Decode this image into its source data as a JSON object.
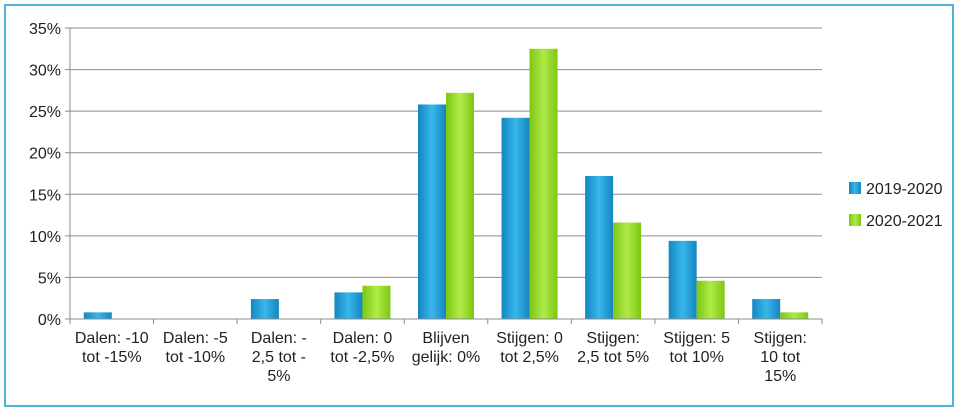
{
  "chart_data": {
    "type": "bar",
    "categories": [
      [
        "Dalen: -10",
        "tot -15%"
      ],
      [
        "Dalen: -5",
        "tot -10%"
      ],
      [
        "Dalen: -",
        "2,5 tot -",
        "5%"
      ],
      [
        "Dalen: 0",
        "tot -2,5%"
      ],
      [
        "Blijven",
        "gelijk: 0%"
      ],
      [
        "Stijgen: 0",
        "tot 2,5%"
      ],
      [
        "Stijgen:",
        "2,5 tot 5%"
      ],
      [
        "Stijgen: 5",
        "tot 10%"
      ],
      [
        "Stijgen:",
        "10 tot",
        "15%"
      ]
    ],
    "series": [
      {
        "name": "2019-2020",
        "color": "#1a9ad6",
        "values": [
          0.8,
          0,
          2.4,
          3.2,
          25.8,
          24.2,
          17.2,
          9.4,
          2.4
        ]
      },
      {
        "name": "2020-2021",
        "color": "#8ed81e",
        "values": [
          0,
          0,
          0,
          4.0,
          27.2,
          32.5,
          11.6,
          4.6,
          0.8
        ]
      }
    ],
    "ylim": [
      0,
      35
    ],
    "yticks": [
      "0%",
      "5%",
      "10%",
      "15%",
      "20%",
      "25%",
      "30%",
      "35%"
    ],
    "grid": true,
    "legend": "right"
  }
}
